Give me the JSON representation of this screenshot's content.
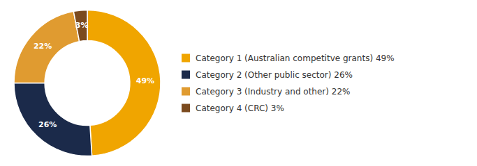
{
  "chart_data": {
    "type": "donut",
    "categories": [
      "Category 1 (Australian competitve grants) 49%",
      "Category 2 (Other public sector) 26%",
      "Category 3 (Industry and other) 22%",
      "Category 4 (CRC) 3%"
    ],
    "values": [
      49,
      26,
      22,
      3
    ],
    "value_labels": [
      "49%",
      "26%",
      "22%",
      "3%"
    ],
    "colors": [
      "#F0A500",
      "#1B2A4A",
      "#E09B30",
      "#7B4A1E"
    ],
    "data_labels": true,
    "legend": "right"
  }
}
